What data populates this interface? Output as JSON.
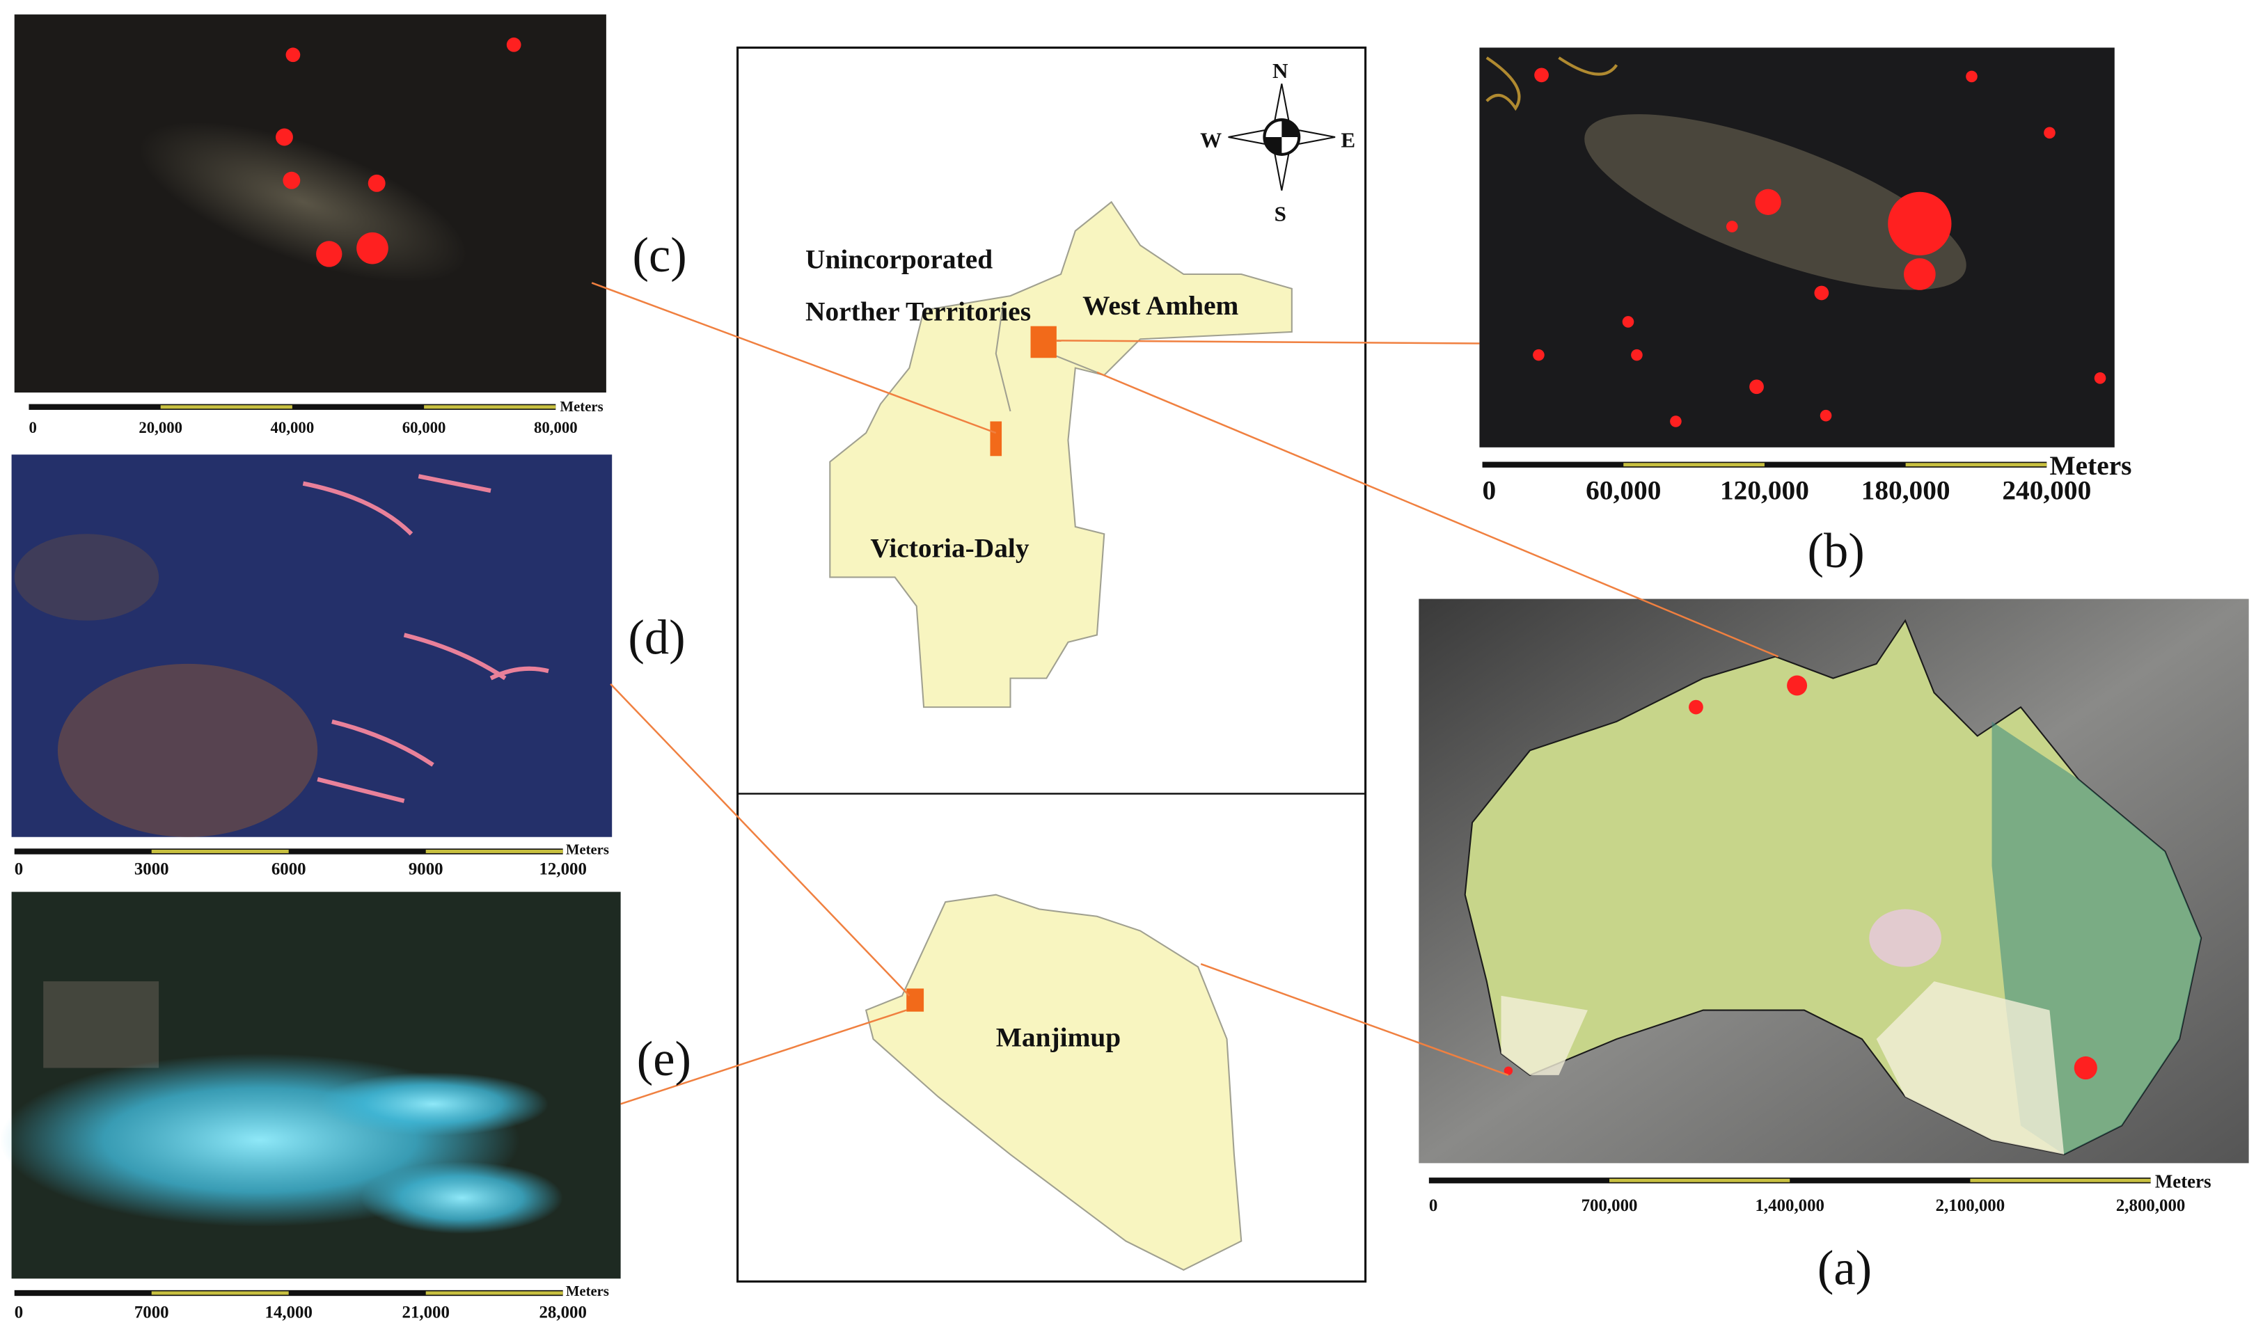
{
  "panels": {
    "a": {
      "label": "(a)",
      "unit": "Meters",
      "ticks": [
        "0",
        "700,000",
        "1,400,000",
        "2,100,000",
        "2,800,000"
      ]
    },
    "b": {
      "label": "(b)",
      "unit": "Meters",
      "ticks": [
        "0",
        "60,000",
        "120,000",
        "180,000",
        "240,000"
      ]
    },
    "c": {
      "label": "(c)",
      "unit": "Meters",
      "ticks": [
        "0",
        "20,000",
        "40,000",
        "60,000",
        "80,000"
      ]
    },
    "d": {
      "label": "(d)",
      "unit": "Meters",
      "ticks": [
        "0",
        "3000",
        "6000",
        "9000",
        "12,000"
      ]
    },
    "e": {
      "label": "(e)",
      "unit": "Meters",
      "ticks": [
        "0",
        "7000",
        "14,000",
        "21,000",
        "28,000"
      ]
    }
  },
  "regions": [
    "Unincorporated",
    "Norther Territories",
    "West Amhem",
    "Victoria-Daly",
    "Manjimup"
  ],
  "compass": [
    "N",
    "S",
    "W",
    "E"
  ]
}
